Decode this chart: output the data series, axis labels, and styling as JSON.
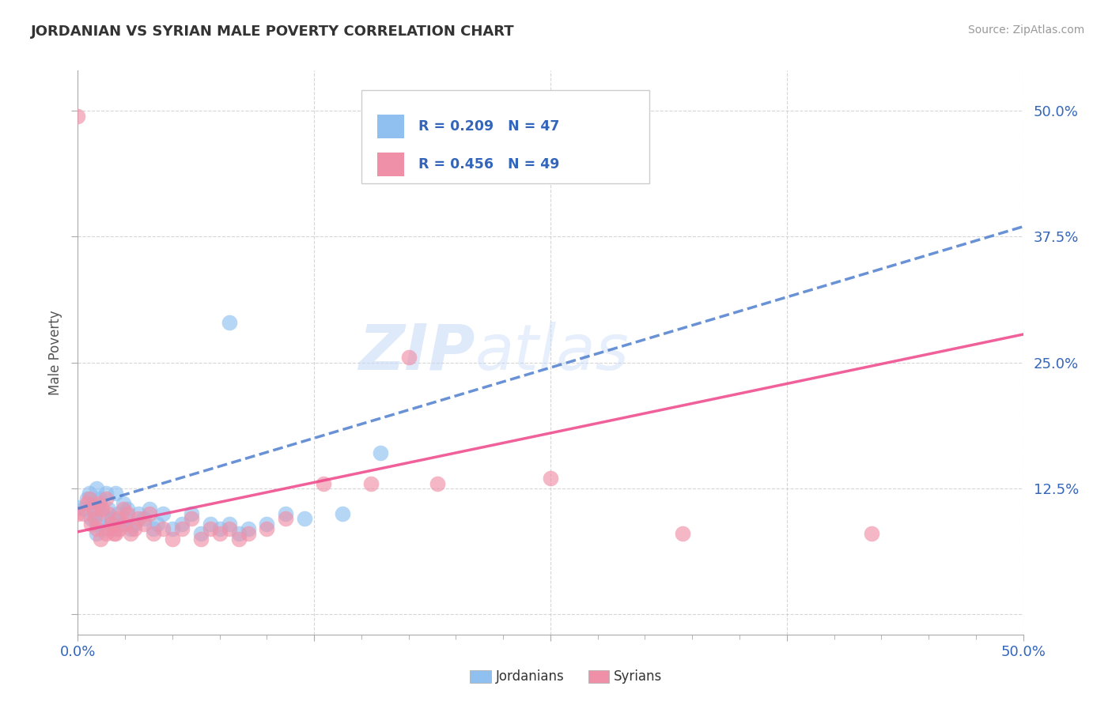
{
  "title": "JORDANIAN VS SYRIAN MALE POVERTY CORRELATION CHART",
  "source": "Source: ZipAtlas.com",
  "ylabel_label": "Male Poverty",
  "xlim": [
    0.0,
    0.5
  ],
  "ylim": [
    -0.02,
    0.54
  ],
  "jordanians_color": "#90C0F0",
  "syrians_color": "#F090A8",
  "jordan_R": 0.209,
  "jordan_N": 47,
  "syria_R": 0.456,
  "syria_N": 49,
  "blue_line_color": "#4477CC",
  "pink_line_color": "#EE4488",
  "watermark_text": "ZIPatlas",
  "legend_labels": [
    "Jordanians",
    "Syrians"
  ],
  "blue_line_x": [
    0.0,
    0.5
  ],
  "blue_line_y": [
    0.105,
    0.385
  ],
  "pink_line_x": [
    0.0,
    0.5
  ],
  "pink_line_y": [
    0.082,
    0.278
  ],
  "jordanians_x": [
    0.003,
    0.005,
    0.006,
    0.007,
    0.008,
    0.009,
    0.01,
    0.01,
    0.01,
    0.012,
    0.013,
    0.015,
    0.015,
    0.016,
    0.017,
    0.018,
    0.02,
    0.02,
    0.021,
    0.022,
    0.024,
    0.025,
    0.026,
    0.028,
    0.03,
    0.032,
    0.035,
    0.038,
    0.04,
    0.042,
    0.045,
    0.05,
    0.055,
    0.06,
    0.065,
    0.07,
    0.075,
    0.08,
    0.085,
    0.09,
    0.1,
    0.11,
    0.12,
    0.14,
    0.16,
    0.08,
    0.0
  ],
  "jordanians_y": [
    0.105,
    0.115,
    0.12,
    0.095,
    0.11,
    0.1,
    0.09,
    0.125,
    0.08,
    0.115,
    0.1,
    0.085,
    0.12,
    0.105,
    0.09,
    0.095,
    0.085,
    0.12,
    0.1,
    0.09,
    0.11,
    0.095,
    0.105,
    0.085,
    0.09,
    0.1,
    0.095,
    0.105,
    0.085,
    0.09,
    0.1,
    0.085,
    0.09,
    0.1,
    0.08,
    0.09,
    0.085,
    0.09,
    0.08,
    0.085,
    0.09,
    0.1,
    0.095,
    0.1,
    0.16,
    0.29,
    0.106
  ],
  "syrians_x": [
    0.003,
    0.005,
    0.006,
    0.007,
    0.008,
    0.009,
    0.01,
    0.011,
    0.012,
    0.013,
    0.015,
    0.015,
    0.016,
    0.017,
    0.018,
    0.019,
    0.02,
    0.021,
    0.022,
    0.024,
    0.025,
    0.026,
    0.028,
    0.03,
    0.032,
    0.035,
    0.038,
    0.04,
    0.045,
    0.05,
    0.055,
    0.06,
    0.065,
    0.07,
    0.075,
    0.08,
    0.085,
    0.09,
    0.1,
    0.11,
    0.13,
    0.155,
    0.175,
    0.19,
    0.25,
    0.32,
    0.42,
    0.0,
    0.0
  ],
  "syrians_y": [
    0.1,
    0.11,
    0.115,
    0.09,
    0.105,
    0.095,
    0.085,
    0.11,
    0.075,
    0.105,
    0.08,
    0.115,
    0.1,
    0.085,
    0.09,
    0.08,
    0.08,
    0.095,
    0.085,
    0.105,
    0.09,
    0.1,
    0.08,
    0.085,
    0.095,
    0.09,
    0.1,
    0.08,
    0.085,
    0.075,
    0.085,
    0.095,
    0.075,
    0.085,
    0.08,
    0.085,
    0.075,
    0.08,
    0.085,
    0.095,
    0.13,
    0.13,
    0.255,
    0.13,
    0.135,
    0.08,
    0.08,
    0.1,
    0.495
  ]
}
